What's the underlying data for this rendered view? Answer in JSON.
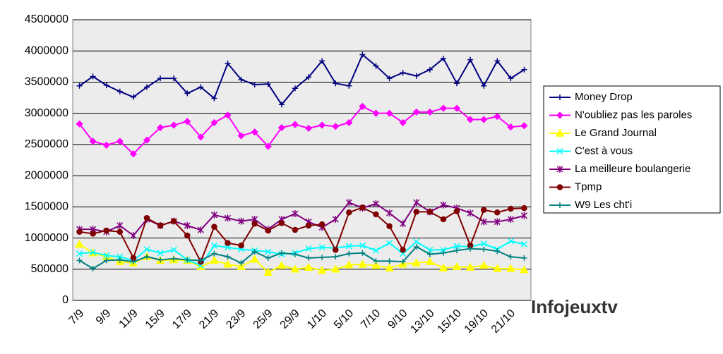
{
  "chart_data": {
    "type": "line",
    "watermark": "Infojeuxtv",
    "categories": [
      "7/9",
      null,
      "9/9",
      null,
      "11/9",
      null,
      "15/9",
      null,
      "17/9",
      null,
      "21/9",
      null,
      "23/9",
      null,
      "25/9",
      null,
      "29/9",
      null,
      "1/10",
      null,
      "5/10",
      null,
      "7/10",
      null,
      "9/10",
      null,
      "13/10",
      null,
      "15/10",
      null,
      "19/10",
      null,
      "21/10",
      null
    ],
    "ylim": [
      0,
      4500000
    ],
    "yticks": [
      0,
      500000,
      1000000,
      1500000,
      2000000,
      2500000,
      3000000,
      3500000,
      4000000,
      4500000
    ],
    "grid": true,
    "legend": "right",
    "series": [
      {
        "name": "Money Drop",
        "color": "#000080",
        "marker": "plus",
        "values": [
          3440000,
          3590000,
          3450000,
          3350000,
          3260000,
          3420000,
          3560000,
          3560000,
          3320000,
          3420000,
          3240000,
          3800000,
          3540000,
          3460000,
          3470000,
          3140000,
          3400000,
          3580000,
          3840000,
          3480000,
          3440000,
          3940000,
          3760000,
          3560000,
          3650000,
          3600000,
          3700000,
          3880000,
          3480000,
          3860000,
          3440000,
          3840000,
          3560000,
          3700000
        ]
      },
      {
        "name": "N'oubliez pas les paroles",
        "color": "#ff00ff",
        "marker": "diamond",
        "values": [
          2830000,
          2550000,
          2490000,
          2550000,
          2350000,
          2570000,
          2770000,
          2810000,
          2870000,
          2620000,
          2850000,
          2970000,
          2640000,
          2700000,
          2470000,
          2770000,
          2820000,
          2760000,
          2810000,
          2790000,
          2850000,
          3110000,
          3000000,
          3000000,
          2850000,
          3020000,
          3020000,
          3080000,
          3080000,
          2900000,
          2900000,
          2950000,
          2780000,
          2800000
        ]
      },
      {
        "name": "Le Grand Journal",
        "color": "#ffff00",
        "marker": "triangle",
        "values": [
          900000,
          760000,
          700000,
          620000,
          600000,
          700000,
          640000,
          650000,
          640000,
          540000,
          640000,
          580000,
          540000,
          660000,
          450000,
          560000,
          500000,
          530000,
          480000,
          500000,
          570000,
          580000,
          560000,
          520000,
          580000,
          600000,
          620000,
          520000,
          540000,
          530000,
          560000,
          510000,
          510000,
          490000
        ]
      },
      {
        "name": "C'est à vous",
        "color": "#00ffff",
        "marker": "x",
        "values": [
          750000,
          770000,
          720000,
          700000,
          640000,
          820000,
          760000,
          810000,
          650000,
          560000,
          880000,
          850000,
          820000,
          800000,
          780000,
          740000,
          760000,
          830000,
          850000,
          840000,
          870000,
          880000,
          800000,
          920000,
          750000,
          940000,
          810000,
          810000,
          870000,
          860000,
          910000,
          820000,
          950000,
          900000
        ]
      },
      {
        "name": "La meilleure boulangerie",
        "color": "#800080",
        "marker": "star",
        "values": [
          1140000,
          1140000,
          1100000,
          1200000,
          1040000,
          1300000,
          1200000,
          1270000,
          1200000,
          1130000,
          1370000,
          1320000,
          1270000,
          1300000,
          1140000,
          1300000,
          1390000,
          1260000,
          1170000,
          1300000,
          1570000,
          1480000,
          1550000,
          1400000,
          1230000,
          1570000,
          1420000,
          1530000,
          1480000,
          1400000,
          1260000,
          1260000,
          1300000,
          1360000
        ]
      },
      {
        "name": "Tpmp",
        "color": "#800000",
        "marker": "circle",
        "values": [
          1100000,
          1070000,
          1120000,
          1100000,
          680000,
          1320000,
          1200000,
          1270000,
          1040000,
          620000,
          1180000,
          920000,
          880000,
          1230000,
          1120000,
          1240000,
          1130000,
          1200000,
          1220000,
          810000,
          1410000,
          1490000,
          1380000,
          1190000,
          810000,
          1420000,
          1420000,
          1300000,
          1430000,
          880000,
          1450000,
          1410000,
          1470000,
          1480000
        ]
      },
      {
        "name": "W9 Les cht'i",
        "color": "#008080",
        "marker": "plus",
        "values": [
          640000,
          510000,
          640000,
          650000,
          620000,
          700000,
          650000,
          670000,
          650000,
          640000,
          750000,
          700000,
          600000,
          780000,
          680000,
          760000,
          740000,
          680000,
          690000,
          700000,
          750000,
          760000,
          630000,
          630000,
          620000,
          860000,
          740000,
          760000,
          800000,
          830000,
          820000,
          790000,
          700000,
          680000
        ]
      }
    ]
  }
}
